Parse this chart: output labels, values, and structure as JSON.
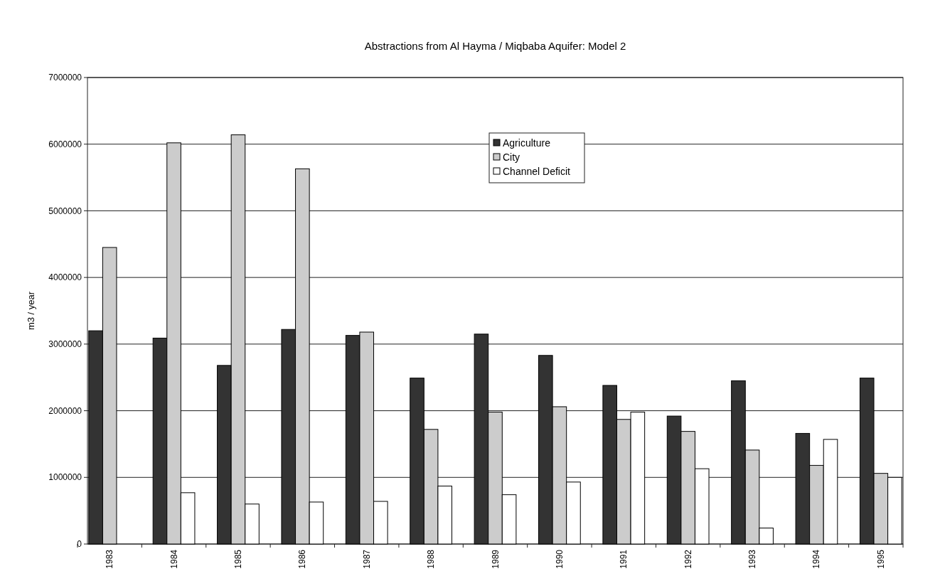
{
  "chart_data": {
    "type": "bar",
    "title": "Abstractions from Al Hayma / Miqbaba Aquifer: Model 2",
    "ylabel": "m3 / year",
    "categories": [
      "1983",
      "1984",
      "1985",
      "1986",
      "1987",
      "1988",
      "1989",
      "1990",
      "1991",
      "1992",
      "1993",
      "1994",
      "1995"
    ],
    "series": [
      {
        "name": "Agriculture",
        "color": "#333333",
        "values": [
          3200000,
          3090000,
          2680000,
          3220000,
          3130000,
          2490000,
          3150000,
          2830000,
          2380000,
          1920000,
          2450000,
          1660000,
          2490000
        ]
      },
      {
        "name": "City",
        "color": "#cccccc",
        "values": [
          4450000,
          6020000,
          6140000,
          5630000,
          3180000,
          1720000,
          1980000,
          2060000,
          1870000,
          1690000,
          1410000,
          1180000,
          1060000
        ]
      },
      {
        "name": "Channel Deficit",
        "color": "#ffffff",
        "values": [
          null,
          770000,
          600000,
          630000,
          640000,
          870000,
          740000,
          930000,
          1980000,
          1130000,
          240000,
          1570000,
          1000000
        ]
      }
    ],
    "ylim": [
      0,
      7000000
    ],
    "yticks": [
      0,
      1000000,
      2000000,
      3000000,
      4000000,
      5000000,
      6000000,
      7000000
    ],
    "grid": "y",
    "legend": "top"
  }
}
